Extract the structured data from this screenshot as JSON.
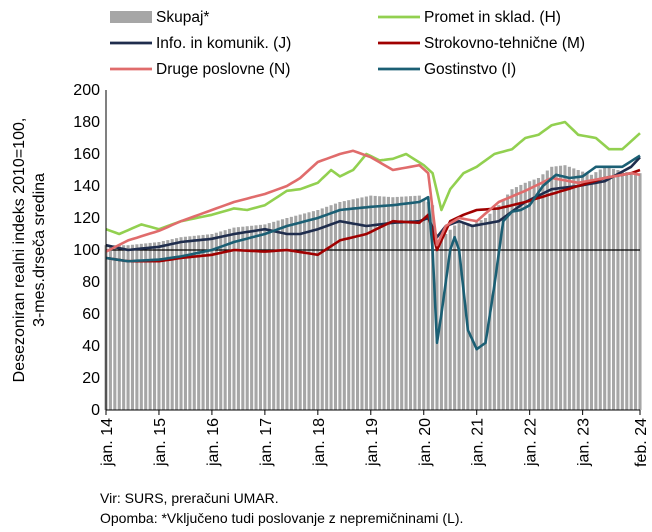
{
  "footer": {
    "source": "Vir: SURS, preračuni UMAR.",
    "note": "Opomba: *Vključeno tudi poslovanje z nepremičninami (L)."
  },
  "chart_data": {
    "type": "bar+line",
    "title": "",
    "ylabel": [
      "Desezoniran realni indeks 2010=100,",
      "3-mes.drseča sredina"
    ],
    "xlabel": "",
    "ylim": [
      0,
      200
    ],
    "yticks": [
      0,
      20,
      40,
      60,
      80,
      100,
      120,
      140,
      160,
      180,
      200
    ],
    "grid": false,
    "reference_line": 100,
    "x_start": "2014-01",
    "x_end": "2024-02",
    "x_tick_labels": [
      "jan. 14",
      "jan. 15",
      "jan. 16",
      "jan. 17",
      "jan. 18",
      "jan. 19",
      "jan. 20",
      "jan. 21",
      "jan. 22",
      "jan. 23",
      "feb. 24"
    ],
    "x_tick_dates": [
      "2014-01",
      "2015-01",
      "2016-01",
      "2017-01",
      "2018-01",
      "2019-01",
      "2020-01",
      "2021-01",
      "2022-01",
      "2023-01",
      "2024-02"
    ],
    "legend_position": "top",
    "series": [
      {
        "name": "Skupaj*",
        "kind": "bar",
        "color": "#a6a6a6",
        "points": [
          [
            "2014-01",
            103
          ],
          [
            "2014-06",
            103
          ],
          [
            "2015-01",
            105
          ],
          [
            "2015-06",
            108
          ],
          [
            "2016-01",
            110
          ],
          [
            "2016-06",
            114
          ],
          [
            "2017-01",
            116
          ],
          [
            "2017-06",
            120
          ],
          [
            "2018-01",
            125
          ],
          [
            "2018-06",
            130
          ],
          [
            "2019-01",
            134
          ],
          [
            "2019-06",
            133
          ],
          [
            "2019-12",
            134
          ],
          [
            "2020-03",
            128
          ],
          [
            "2020-04",
            102
          ],
          [
            "2020-06",
            110
          ],
          [
            "2020-09",
            118
          ],
          [
            "2020-12",
            116
          ],
          [
            "2021-03",
            120
          ],
          [
            "2021-06",
            128
          ],
          [
            "2021-09",
            138
          ],
          [
            "2021-12",
            142
          ],
          [
            "2022-03",
            145
          ],
          [
            "2022-06",
            152
          ],
          [
            "2022-09",
            153
          ],
          [
            "2022-12",
            150
          ],
          [
            "2023-03",
            147
          ],
          [
            "2023-06",
            152
          ],
          [
            "2023-09",
            150
          ],
          [
            "2023-12",
            148
          ],
          [
            "2024-02",
            148
          ]
        ]
      },
      {
        "name": "Promet in sklad. (H)",
        "kind": "line",
        "color": "#92d050",
        "points": [
          [
            "2014-01",
            113
          ],
          [
            "2014-04",
            110
          ],
          [
            "2014-09",
            116
          ],
          [
            "2015-01",
            113
          ],
          [
            "2015-06",
            118
          ],
          [
            "2016-01",
            122
          ],
          [
            "2016-06",
            126
          ],
          [
            "2016-09",
            125
          ],
          [
            "2017-01",
            128
          ],
          [
            "2017-06",
            137
          ],
          [
            "2017-09",
            138
          ],
          [
            "2018-01",
            142
          ],
          [
            "2018-04",
            150
          ],
          [
            "2018-06",
            146
          ],
          [
            "2018-09",
            150
          ],
          [
            "2018-12",
            160
          ],
          [
            "2019-03",
            156
          ],
          [
            "2019-06",
            157
          ],
          [
            "2019-09",
            160
          ],
          [
            "2020-01",
            153
          ],
          [
            "2020-03",
            148
          ],
          [
            "2020-05",
            125
          ],
          [
            "2020-07",
            138
          ],
          [
            "2020-10",
            148
          ],
          [
            "2021-01",
            152
          ],
          [
            "2021-05",
            160
          ],
          [
            "2021-09",
            163
          ],
          [
            "2021-12",
            170
          ],
          [
            "2022-03",
            172
          ],
          [
            "2022-06",
            178
          ],
          [
            "2022-09",
            180
          ],
          [
            "2022-12",
            172
          ],
          [
            "2023-04",
            170
          ],
          [
            "2023-07",
            163
          ],
          [
            "2023-10",
            163
          ],
          [
            "2024-02",
            173
          ]
        ]
      },
      {
        "name": "Info. in komunik. (J)",
        "kind": "line",
        "color": "#1f2d4d",
        "points": [
          [
            "2014-01",
            103
          ],
          [
            "2014-06",
            100
          ],
          [
            "2015-01",
            102
          ],
          [
            "2015-06",
            105
          ],
          [
            "2016-01",
            107
          ],
          [
            "2016-06",
            110
          ],
          [
            "2017-01",
            113
          ],
          [
            "2017-06",
            110
          ],
          [
            "2017-09",
            110
          ],
          [
            "2018-01",
            113
          ],
          [
            "2018-06",
            118
          ],
          [
            "2018-12",
            115
          ],
          [
            "2019-06",
            117
          ],
          [
            "2019-12",
            118
          ],
          [
            "2020-02",
            120
          ],
          [
            "2020-04",
            108
          ],
          [
            "2020-06",
            115
          ],
          [
            "2020-09",
            118
          ],
          [
            "2020-12",
            115
          ],
          [
            "2021-06",
            118
          ],
          [
            "2021-12",
            130
          ],
          [
            "2022-06",
            138
          ],
          [
            "2022-12",
            140
          ],
          [
            "2023-06",
            143
          ],
          [
            "2023-12",
            152
          ],
          [
            "2024-02",
            158
          ]
        ]
      },
      {
        "name": "Strokovno-tehnične (M)",
        "kind": "line",
        "color": "#a00000",
        "points": [
          [
            "2014-01",
            95
          ],
          [
            "2014-06",
            93
          ],
          [
            "2015-01",
            93
          ],
          [
            "2015-06",
            95
          ],
          [
            "2016-01",
            97
          ],
          [
            "2016-06",
            100
          ],
          [
            "2017-01",
            99
          ],
          [
            "2017-06",
            100
          ],
          [
            "2018-01",
            97
          ],
          [
            "2018-06",
            106
          ],
          [
            "2018-12",
            110
          ],
          [
            "2019-06",
            118
          ],
          [
            "2019-12",
            117
          ],
          [
            "2020-02",
            122
          ],
          [
            "2020-04",
            100
          ],
          [
            "2020-07",
            118
          ],
          [
            "2020-10",
            122
          ],
          [
            "2021-01",
            125
          ],
          [
            "2021-06",
            126
          ],
          [
            "2021-12",
            130
          ],
          [
            "2022-06",
            135
          ],
          [
            "2022-12",
            140
          ],
          [
            "2023-06",
            145
          ],
          [
            "2023-12",
            148
          ],
          [
            "2024-02",
            150
          ]
        ]
      },
      {
        "name": "Druge poslovne (N)",
        "kind": "line",
        "color": "#e06c6c",
        "points": [
          [
            "2014-01",
            99
          ],
          [
            "2014-06",
            106
          ],
          [
            "2015-01",
            112
          ],
          [
            "2015-06",
            118
          ],
          [
            "2016-01",
            125
          ],
          [
            "2016-06",
            130
          ],
          [
            "2017-01",
            135
          ],
          [
            "2017-06",
            140
          ],
          [
            "2017-09",
            145
          ],
          [
            "2018-01",
            155
          ],
          [
            "2018-06",
            160
          ],
          [
            "2018-09",
            162
          ],
          [
            "2019-01",
            158
          ],
          [
            "2019-06",
            150
          ],
          [
            "2019-12",
            153
          ],
          [
            "2020-02",
            148
          ],
          [
            "2020-04",
            103
          ],
          [
            "2020-06",
            115
          ],
          [
            "2020-09",
            120
          ],
          [
            "2021-01",
            118
          ],
          [
            "2021-06",
            130
          ],
          [
            "2021-12",
            137
          ],
          [
            "2022-06",
            145
          ],
          [
            "2022-12",
            142
          ],
          [
            "2023-06",
            145
          ],
          [
            "2023-12",
            148
          ],
          [
            "2024-02",
            147
          ]
        ]
      },
      {
        "name": "Gostinstvo (I)",
        "kind": "line",
        "color": "#1b5f74",
        "points": [
          [
            "2014-01",
            95
          ],
          [
            "2014-06",
            93
          ],
          [
            "2015-01",
            94
          ],
          [
            "2015-06",
            96
          ],
          [
            "2016-01",
            100
          ],
          [
            "2016-06",
            105
          ],
          [
            "2017-01",
            110
          ],
          [
            "2017-06",
            115
          ],
          [
            "2018-01",
            120
          ],
          [
            "2018-06",
            125
          ],
          [
            "2019-01",
            127
          ],
          [
            "2019-06",
            128
          ],
          [
            "2019-12",
            130
          ],
          [
            "2020-02",
            133
          ],
          [
            "2020-03",
            100
          ],
          [
            "2020-04",
            42
          ],
          [
            "2020-05",
            60
          ],
          [
            "2020-07",
            100
          ],
          [
            "2020-08",
            108
          ],
          [
            "2020-09",
            100
          ],
          [
            "2020-11",
            50
          ],
          [
            "2021-01",
            38
          ],
          [
            "2021-03",
            42
          ],
          [
            "2021-05",
            78
          ],
          [
            "2021-07",
            118
          ],
          [
            "2021-09",
            124
          ],
          [
            "2021-11",
            125
          ],
          [
            "2022-01",
            128
          ],
          [
            "2022-04",
            140
          ],
          [
            "2022-07",
            147
          ],
          [
            "2022-10",
            145
          ],
          [
            "2023-01",
            146
          ],
          [
            "2023-04",
            152
          ],
          [
            "2023-07",
            152
          ],
          [
            "2023-10",
            152
          ],
          [
            "2024-02",
            159
          ]
        ]
      }
    ]
  }
}
